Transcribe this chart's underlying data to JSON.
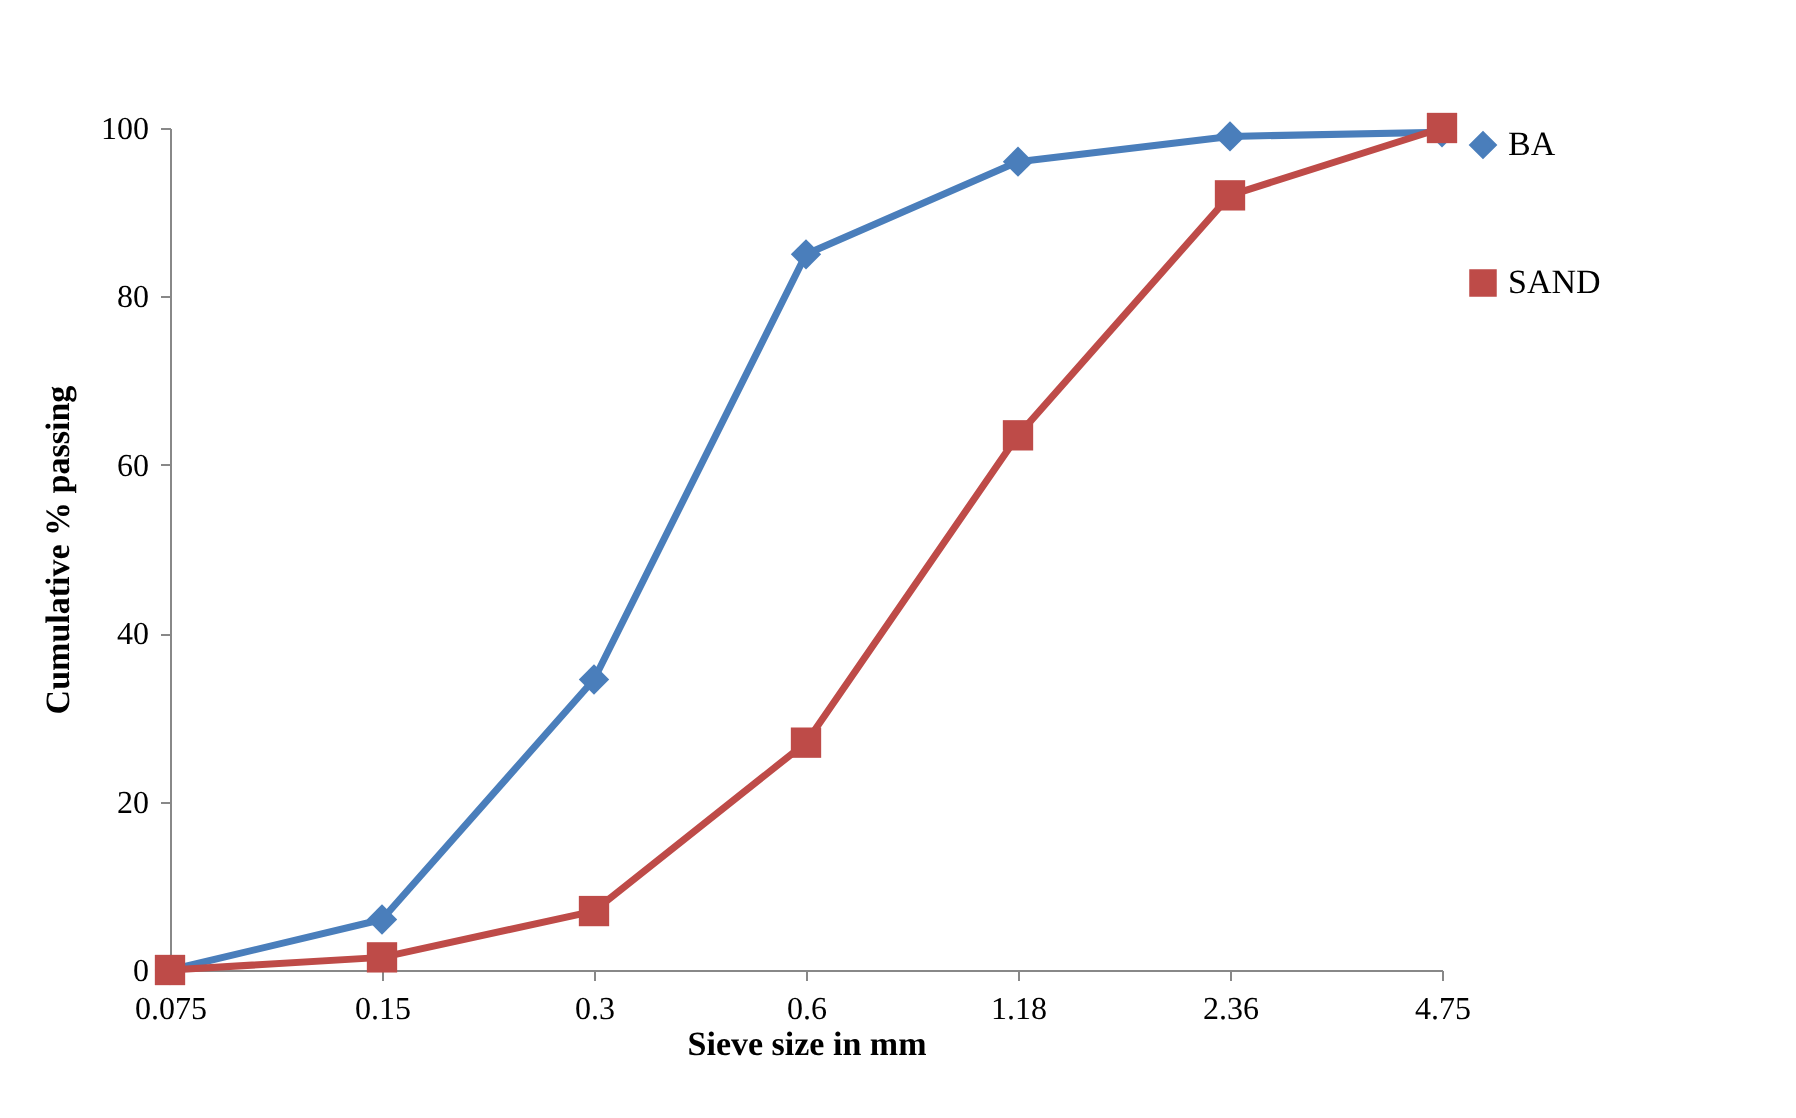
{
  "chart_data": {
    "type": "line",
    "xlabel": "Sieve size in mm",
    "ylabel": "Cumulative % passing",
    "categories": [
      "0.075",
      "0.15",
      "0.3",
      "0.6",
      "1.18",
      "2.36",
      "4.75"
    ],
    "series": [
      {
        "name": "BA",
        "color": "#4a7ebb",
        "marker": "diamond",
        "values": [
          0,
          6,
          34.5,
          85,
          96,
          99,
          99.5
        ]
      },
      {
        "name": "SAND",
        "color": "#be4b48",
        "marker": "square",
        "values": [
          0,
          1.5,
          7,
          27,
          63.5,
          92,
          100
        ]
      }
    ],
    "ylim": [
      0,
      100
    ],
    "yticks": [
      0,
      20,
      40,
      60,
      80,
      100
    ],
    "grid": false,
    "legend": "right",
    "line_style": "solid"
  }
}
